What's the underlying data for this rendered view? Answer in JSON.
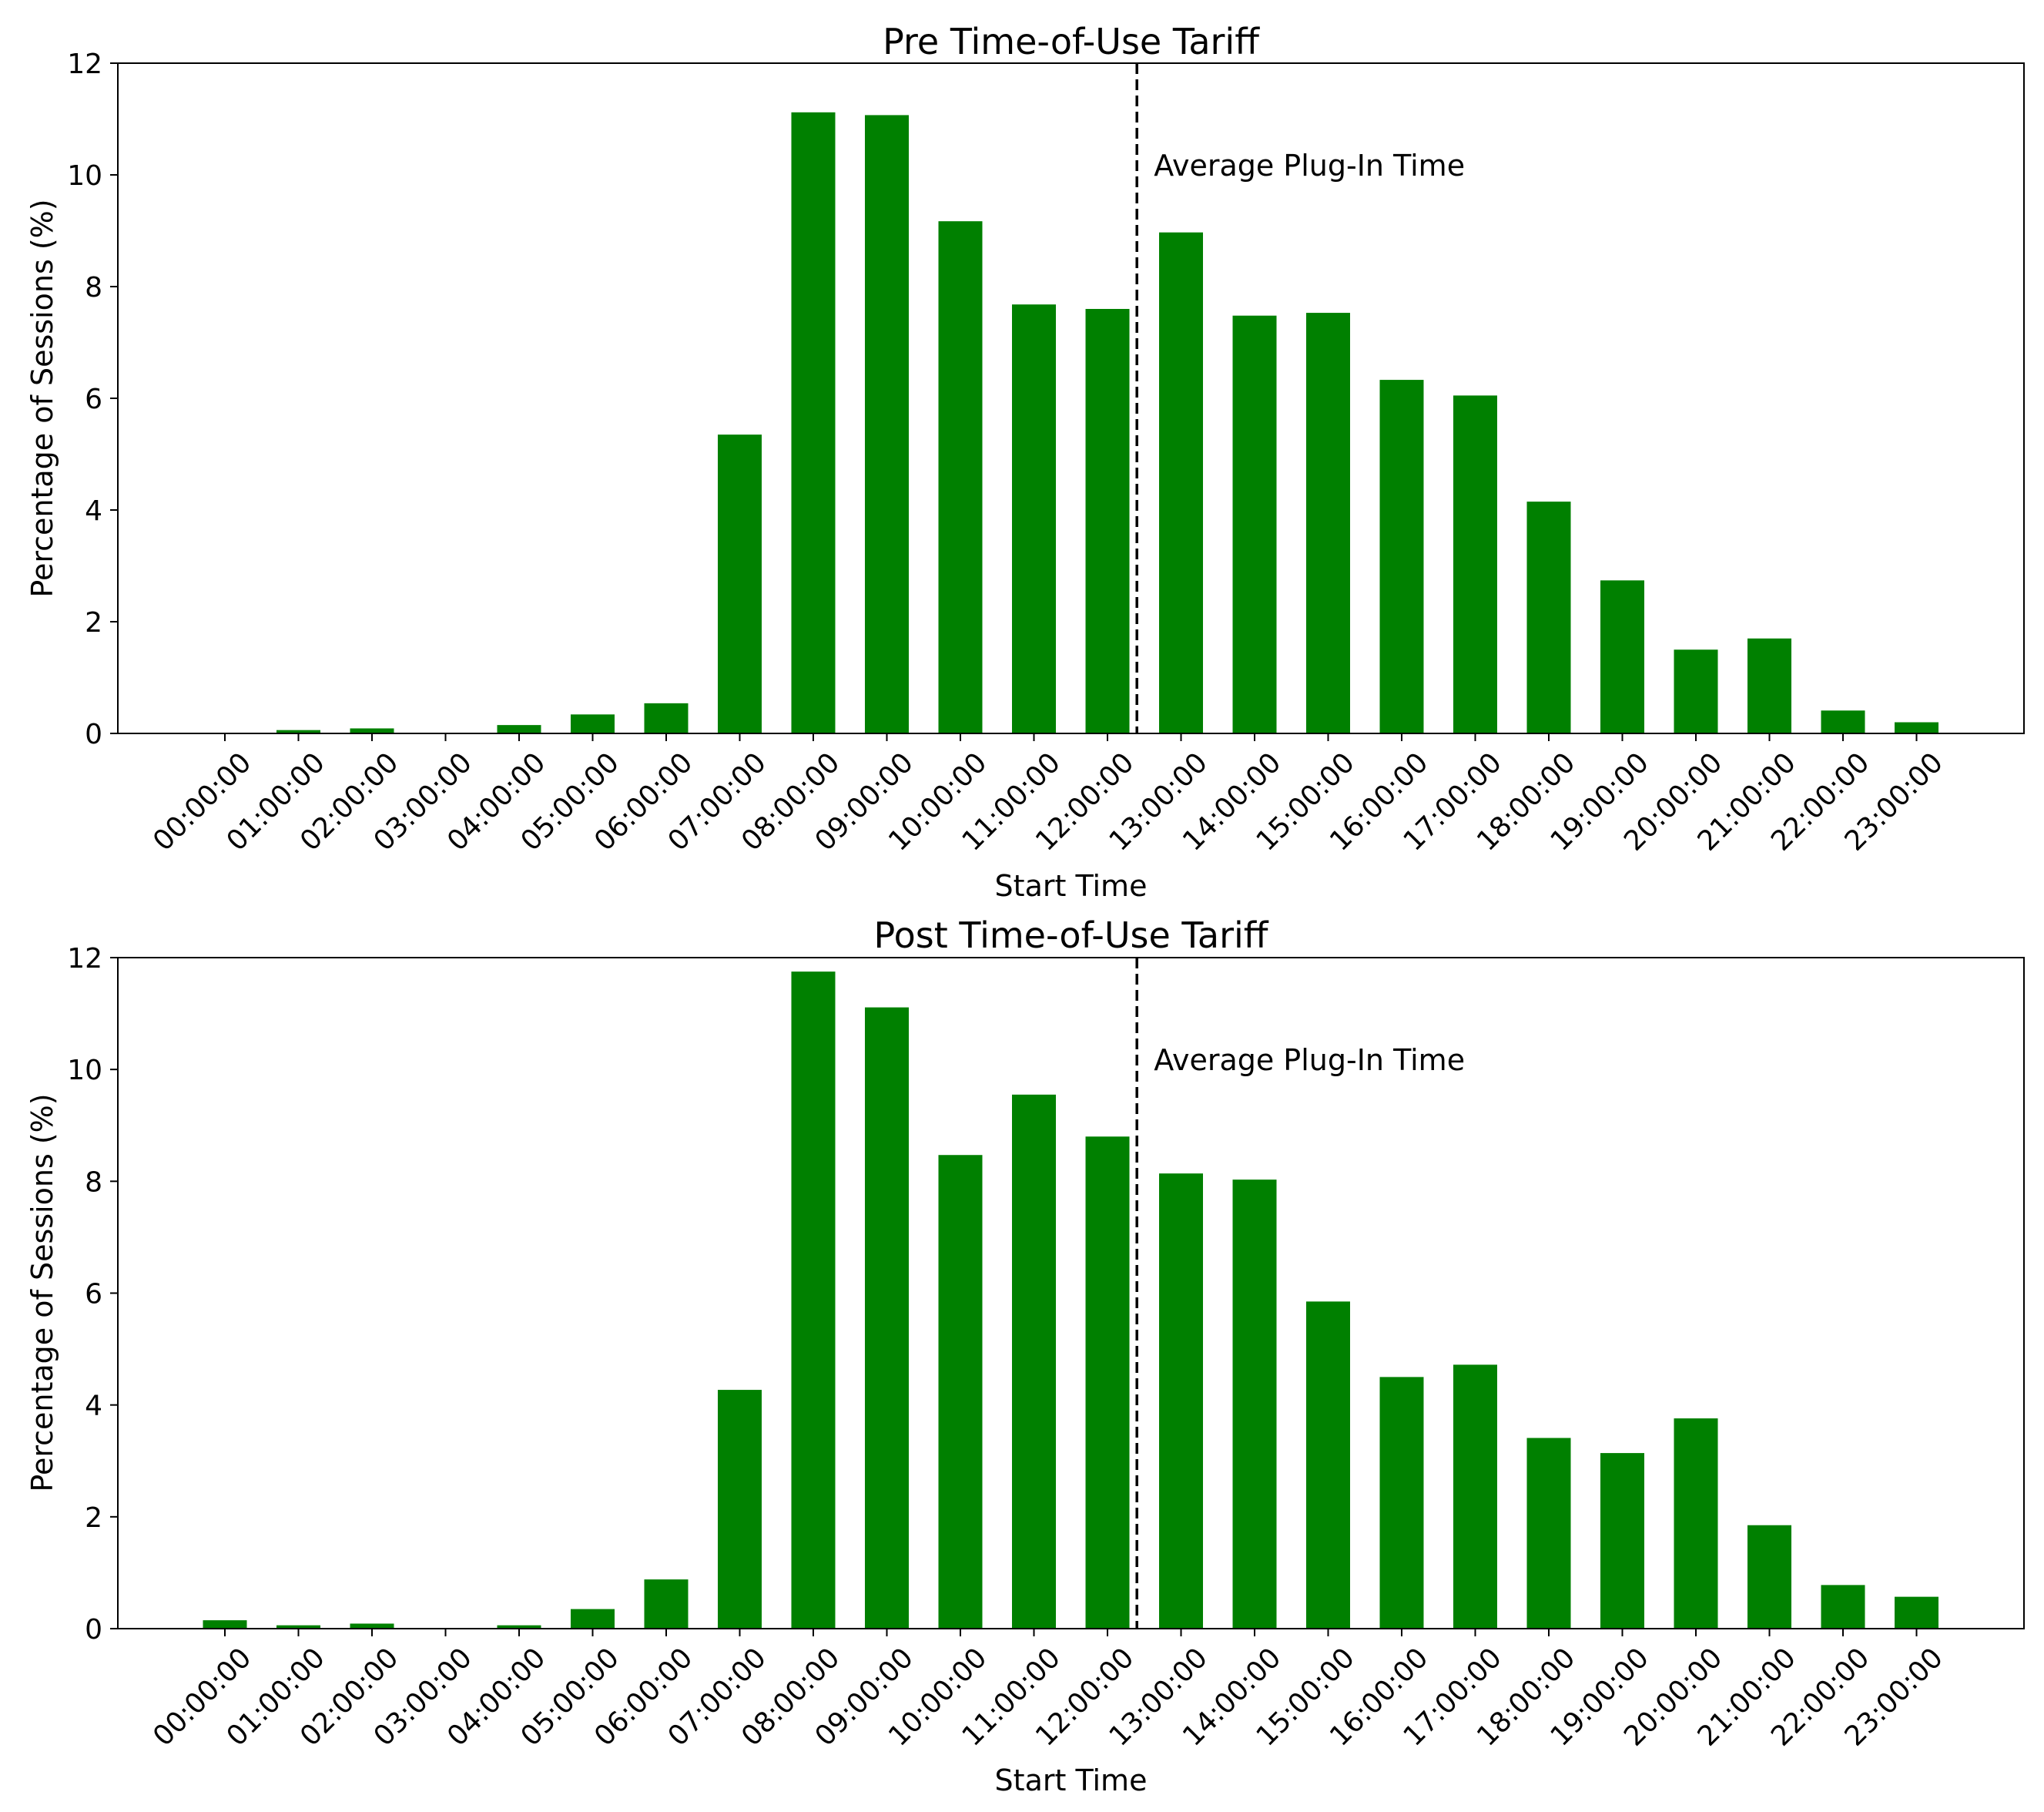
{
  "chart_data": [
    {
      "type": "bar",
      "title": "Pre Time-of-Use Tariff",
      "xlabel": "Start Time",
      "ylabel": "Percentage of Sessions (%)",
      "ylim": [
        0,
        12
      ],
      "yticks": [
        0,
        2,
        4,
        6,
        8,
        10,
        12
      ],
      "grid": false,
      "bar_color": "#008000",
      "categories": [
        "00:00:00",
        "01:00:00",
        "02:00:00",
        "03:00:00",
        "04:00:00",
        "05:00:00",
        "06:00:00",
        "07:00:00",
        "08:00:00",
        "09:00:00",
        "10:00:00",
        "11:00:00",
        "12:00:00",
        "13:00:00",
        "14:00:00",
        "15:00:00",
        "16:00:00",
        "17:00:00",
        "18:00:00",
        "19:00:00",
        "20:00:00",
        "21:00:00",
        "22:00:00",
        "23:00:00"
      ],
      "values": [
        0.0,
        0.06,
        0.09,
        0.0,
        0.15,
        0.34,
        0.54,
        5.35,
        11.12,
        11.07,
        9.17,
        7.68,
        7.6,
        8.97,
        7.48,
        7.53,
        6.33,
        6.05,
        4.15,
        2.74,
        1.5,
        1.7,
        0.41,
        0.2
      ],
      "annotations": [
        {
          "type": "vline",
          "x": 12.4,
          "label": "Average Plug-In Time",
          "style": "dashed",
          "color": "#000000"
        }
      ]
    },
    {
      "type": "bar",
      "title": "Post Time-of-Use Tariff",
      "xlabel": "Start Time",
      "ylabel": "Percentage of Sessions (%)",
      "ylim": [
        0,
        12
      ],
      "yticks": [
        0,
        2,
        4,
        6,
        8,
        10,
        12
      ],
      "grid": false,
      "bar_color": "#008000",
      "categories": [
        "00:00:00",
        "01:00:00",
        "02:00:00",
        "03:00:00",
        "04:00:00",
        "05:00:00",
        "06:00:00",
        "07:00:00",
        "08:00:00",
        "09:00:00",
        "10:00:00",
        "11:00:00",
        "12:00:00",
        "13:00:00",
        "14:00:00",
        "15:00:00",
        "16:00:00",
        "17:00:00",
        "18:00:00",
        "19:00:00",
        "20:00:00",
        "21:00:00",
        "22:00:00",
        "23:00:00"
      ],
      "values": [
        0.15,
        0.06,
        0.09,
        0.0,
        0.06,
        0.35,
        0.88,
        4.27,
        11.75,
        11.11,
        8.47,
        9.55,
        8.8,
        8.14,
        8.03,
        5.85,
        4.5,
        4.72,
        3.41,
        3.14,
        3.76,
        1.85,
        0.78,
        0.57
      ],
      "annotations": [
        {
          "type": "vline",
          "x": 12.4,
          "label": "Average Plug-In Time",
          "style": "dashed",
          "color": "#000000"
        }
      ]
    }
  ]
}
